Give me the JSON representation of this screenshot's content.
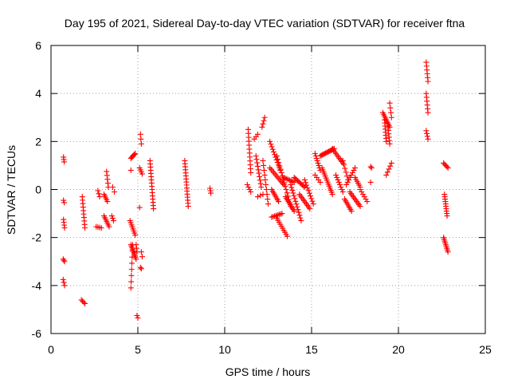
{
  "chart_data": {
    "type": "scatter",
    "title": "Day 195 of 2021, Sidereal Day-to-day VTEC variation (SDTVAR) for receiver ftna",
    "xlabel": "GPS time / hours",
    "ylabel": "SDTVAR / TECUs",
    "xlim": [
      0,
      25
    ],
    "ylim": [
      -6,
      6
    ],
    "xticks": [
      "0",
      "5",
      "10",
      "15",
      "20",
      "25"
    ],
    "yticks": [
      "-6",
      "-4",
      "-2",
      "0",
      "2",
      "4",
      "6"
    ],
    "grid": true,
    "marker": "+",
    "series_color": "#ff0000",
    "series": [
      {
        "name": "SDTVAR",
        "segments": [
          {
            "x0": 0.72,
            "y0": 1.35,
            "x1": 0.76,
            "y1": 1.15,
            "n": 3
          },
          {
            "x0": 0.72,
            "y0": -0.45,
            "x1": 0.76,
            "y1": -0.55,
            "n": 2
          },
          {
            "x0": 0.72,
            "y0": -1.25,
            "x1": 0.78,
            "y1": -1.6,
            "n": 4
          },
          {
            "x0": 0.7,
            "y0": -2.9,
            "x1": 0.78,
            "y1": -3.0,
            "n": 3
          },
          {
            "x0": 0.7,
            "y0": -3.75,
            "x1": 0.78,
            "y1": -4.0,
            "n": 3
          },
          {
            "x0": 1.8,
            "y0": -0.3,
            "x1": 1.95,
            "y1": -1.6,
            "n": 10
          },
          {
            "x0": 1.75,
            "y0": -4.6,
            "x1": 1.95,
            "y1": -4.75,
            "n": 4
          },
          {
            "x0": 2.7,
            "y0": -0.05,
            "x1": 2.8,
            "y1": -0.3,
            "n": 3
          },
          {
            "x0": 2.6,
            "y0": -1.55,
            "x1": 2.9,
            "y1": -1.6,
            "n": 4
          },
          {
            "x0": 3.05,
            "y0": -0.2,
            "x1": 3.25,
            "y1": -0.5,
            "n": 5
          },
          {
            "x0": 3.2,
            "y0": 0.75,
            "x1": 3.3,
            "y1": 0.1,
            "n": 5
          },
          {
            "x0": 3.05,
            "y0": -1.1,
            "x1": 3.35,
            "y1": -1.55,
            "n": 7
          },
          {
            "x0": 3.55,
            "y0": 0.1,
            "x1": 3.65,
            "y1": -0.1,
            "n": 2
          },
          {
            "x0": 3.5,
            "y0": -1.1,
            "x1": 3.6,
            "y1": -1.3,
            "n": 3
          },
          {
            "x0": 4.6,
            "y0": 1.3,
            "x1": 4.85,
            "y1": 1.5,
            "n": 6
          },
          {
            "x0": 4.6,
            "y0": 0.8,
            "x1": 4.7,
            "y1": 0.8,
            "n": 1
          },
          {
            "x0": 4.55,
            "y0": -1.3,
            "x1": 4.85,
            "y1": -1.9,
            "n": 8
          },
          {
            "x0": 4.6,
            "y0": -2.3,
            "x1": 4.9,
            "y1": -2.9,
            "n": 10
          },
          {
            "x0": 4.7,
            "y0": -2.3,
            "x1": 4.6,
            "y1": -4.1,
            "n": 8
          },
          {
            "x0": 4.9,
            "y0": -2.3,
            "x1": 4.95,
            "y1": -2.6,
            "n": 3
          },
          {
            "x0": 4.95,
            "y0": -5.25,
            "x1": 5.0,
            "y1": -5.35,
            "n": 2
          },
          {
            "x0": 5.15,
            "y0": 2.3,
            "x1": 5.2,
            "y1": 1.9,
            "n": 3
          },
          {
            "x0": 5.1,
            "y0": 0.9,
            "x1": 5.25,
            "y1": 0.65,
            "n": 4
          },
          {
            "x0": 5.1,
            "y0": -0.75,
            "x1": 5.15,
            "y1": -0.75,
            "n": 1
          },
          {
            "x0": 5.2,
            "y0": -2.6,
            "x1": 5.25,
            "y1": -2.8,
            "n": 2
          },
          {
            "x0": 5.15,
            "y0": -3.25,
            "x1": 5.2,
            "y1": -3.3,
            "n": 2
          },
          {
            "x0": 5.7,
            "y0": 1.2,
            "x1": 5.9,
            "y1": -0.8,
            "n": 16
          },
          {
            "x0": 7.7,
            "y0": 1.2,
            "x1": 7.9,
            "y1": -0.7,
            "n": 16
          },
          {
            "x0": 9.15,
            "y0": 0.05,
            "x1": 9.2,
            "y1": -0.15,
            "n": 3
          },
          {
            "x0": 11.35,
            "y0": 2.5,
            "x1": 11.5,
            "y1": 0.7,
            "n": 12
          },
          {
            "x0": 11.3,
            "y0": 0.2,
            "x1": 11.5,
            "y1": -0.1,
            "n": 4
          },
          {
            "x0": 11.7,
            "y0": 2.1,
            "x1": 11.9,
            "y1": 2.3,
            "n": 3
          },
          {
            "x0": 11.8,
            "y0": 1.4,
            "x1": 12.1,
            "y1": 0.1,
            "n": 10
          },
          {
            "x0": 11.9,
            "y0": -0.3,
            "x1": 12.2,
            "y1": -0.2,
            "n": 3
          },
          {
            "x0": 12.15,
            "y0": 2.6,
            "x1": 12.3,
            "y1": 3.0,
            "n": 4
          },
          {
            "x0": 12.2,
            "y0": 1.2,
            "x1": 12.5,
            "y1": -0.6,
            "n": 10
          },
          {
            "x0": 12.6,
            "y0": 2.0,
            "x1": 13.2,
            "y1": 0.8,
            "n": 12
          },
          {
            "x0": 12.6,
            "y0": 0.9,
            "x1": 13.4,
            "y1": 0.2,
            "n": 12
          },
          {
            "x0": 12.7,
            "y0": -1.15,
            "x1": 13.3,
            "y1": -1.0,
            "n": 8
          },
          {
            "x0": 12.7,
            "y0": 0.0,
            "x1": 13.1,
            "y1": -0.5,
            "n": 8
          },
          {
            "x0": 13.0,
            "y0": -1.2,
            "x1": 13.6,
            "y1": -1.95,
            "n": 10
          },
          {
            "x0": 13.0,
            "y0": 1.4,
            "x1": 13.8,
            "y1": -0.7,
            "n": 16
          },
          {
            "x0": 13.4,
            "y0": 0.5,
            "x1": 14.0,
            "y1": 0.3,
            "n": 8
          },
          {
            "x0": 13.5,
            "y0": -0.3,
            "x1": 14.0,
            "y1": -0.9,
            "n": 10
          },
          {
            "x0": 13.8,
            "y0": 0.2,
            "x1": 14.4,
            "y1": -1.3,
            "n": 14
          },
          {
            "x0": 14.0,
            "y0": 0.5,
            "x1": 14.6,
            "y1": 0.1,
            "n": 10
          },
          {
            "x0": 14.3,
            "y0": -0.2,
            "x1": 14.9,
            "y1": -0.8,
            "n": 10
          },
          {
            "x0": 14.6,
            "y0": 0.4,
            "x1": 15.1,
            "y1": -0.6,
            "n": 10
          },
          {
            "x0": 15.2,
            "y0": 1.5,
            "x1": 15.5,
            "y1": 0.8,
            "n": 8
          },
          {
            "x0": 15.2,
            "y0": 0.6,
            "x1": 15.5,
            "y1": 0.3,
            "n": 4
          },
          {
            "x0": 15.5,
            "y0": 1.4,
            "x1": 16.3,
            "y1": 1.7,
            "n": 14
          },
          {
            "x0": 15.6,
            "y0": 0.9,
            "x1": 16.2,
            "y1": -0.2,
            "n": 14
          },
          {
            "x0": 16.2,
            "y0": 1.7,
            "x1": 16.8,
            "y1": 1.1,
            "n": 10
          },
          {
            "x0": 16.4,
            "y0": 0.6,
            "x1": 16.8,
            "y1": -0.1,
            "n": 8
          },
          {
            "x0": 16.8,
            "y0": 1.2,
            "x1": 17.1,
            "y1": 0.4,
            "n": 6
          },
          {
            "x0": 16.9,
            "y0": -0.4,
            "x1": 17.3,
            "y1": -0.9,
            "n": 8
          },
          {
            "x0": 17.0,
            "y0": 0.2,
            "x1": 17.5,
            "y1": 0.9,
            "n": 8
          },
          {
            "x0": 17.2,
            "y0": -0.1,
            "x1": 17.8,
            "y1": -0.7,
            "n": 10
          },
          {
            "x0": 17.5,
            "y0": 0.5,
            "x1": 17.8,
            "y1": 0.1,
            "n": 6
          },
          {
            "x0": 17.8,
            "y0": 0.0,
            "x1": 18.2,
            "y1": -0.5,
            "n": 6
          },
          {
            "x0": 18.4,
            "y0": 0.95,
            "x1": 18.45,
            "y1": 0.9,
            "n": 2
          },
          {
            "x0": 18.4,
            "y0": 0.3,
            "x1": 18.4,
            "y1": 0.2,
            "n": 1
          },
          {
            "x0": 19.1,
            "y0": 3.2,
            "x1": 19.5,
            "y1": 2.6,
            "n": 10
          },
          {
            "x0": 19.2,
            "y0": 2.9,
            "x1": 19.3,
            "y1": 2.0,
            "n": 8
          },
          {
            "x0": 19.4,
            "y0": 2.6,
            "x1": 19.5,
            "y1": 1.9,
            "n": 6
          },
          {
            "x0": 19.5,
            "y0": 3.6,
            "x1": 19.6,
            "y1": 3.0,
            "n": 4
          },
          {
            "x0": 19.3,
            "y0": 0.6,
            "x1": 19.6,
            "y1": 1.1,
            "n": 5
          },
          {
            "x0": 21.6,
            "y0": 5.3,
            "x1": 21.7,
            "y1": 4.5,
            "n": 6
          },
          {
            "x0": 21.6,
            "y0": 4.0,
            "x1": 21.7,
            "y1": 3.2,
            "n": 6
          },
          {
            "x0": 21.6,
            "y0": 2.45,
            "x1": 21.7,
            "y1": 2.1,
            "n": 4
          },
          {
            "x0": 22.6,
            "y0": 1.1,
            "x1": 22.85,
            "y1": 0.9,
            "n": 5
          },
          {
            "x0": 22.65,
            "y0": -0.2,
            "x1": 22.8,
            "y1": -1.1,
            "n": 10
          },
          {
            "x0": 22.6,
            "y0": -2.0,
            "x1": 22.85,
            "y1": -2.6,
            "n": 9
          }
        ]
      }
    ]
  }
}
